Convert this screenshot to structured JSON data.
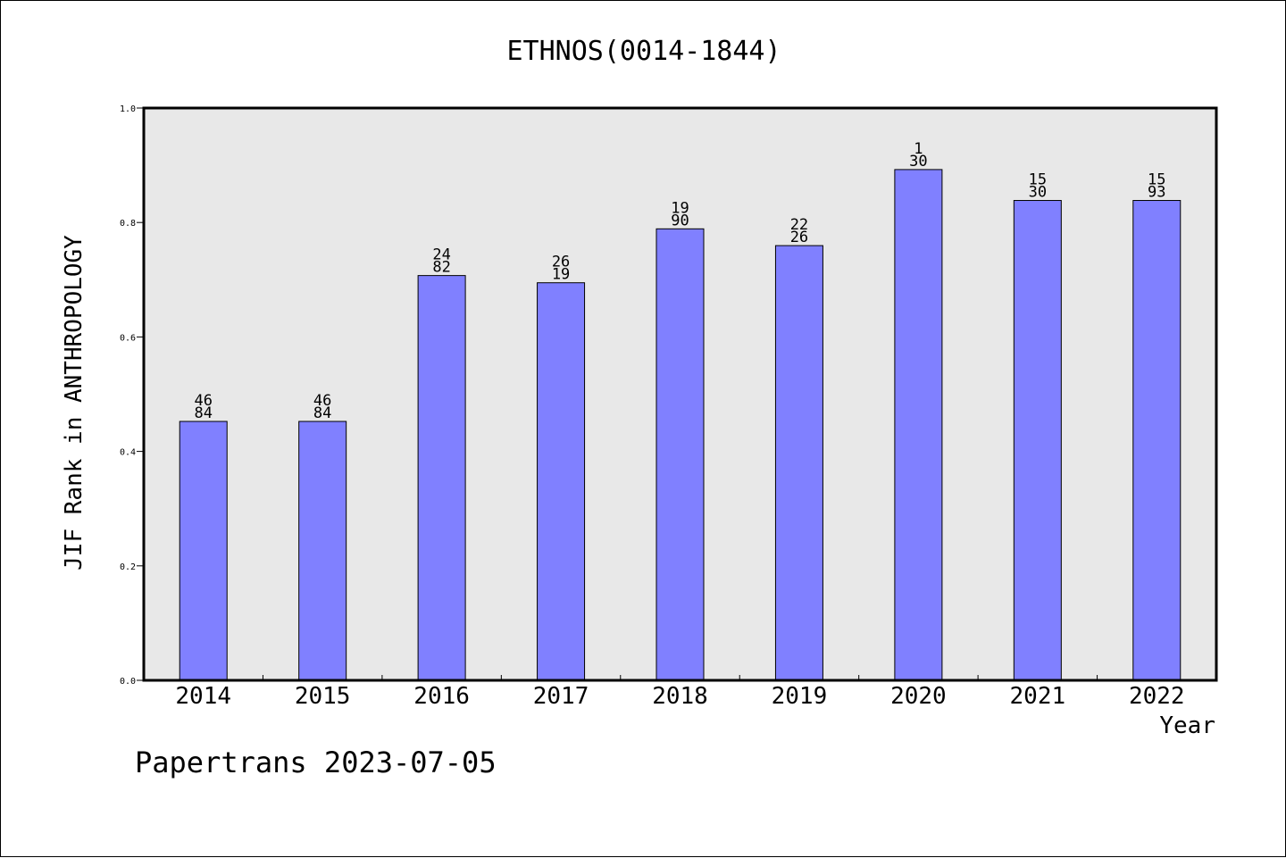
{
  "footer": "Papertrans 2023-07-05",
  "chart_data": {
    "type": "bar",
    "title": "ETHNOS(0014-1844)",
    "xlabel": "Year",
    "ylabel": "JIF Rank in ANTHROPOLOGY",
    "ylim": [
      0,
      1
    ],
    "yticks": [
      "0.0",
      "0.2",
      "0.4",
      "0.6",
      "0.8",
      "1.0"
    ],
    "ytick_values": [
      0,
      0.2,
      0.4,
      0.6,
      0.8,
      1.0
    ],
    "categories": [
      "2014",
      "2015",
      "2016",
      "2017",
      "2018",
      "2019",
      "2020",
      "2021",
      "2022"
    ],
    "values": [
      0.4524,
      0.4524,
      0.7073,
      0.6947,
      0.7889,
      0.7596,
      0.8925,
      0.8385,
      0.8385
    ],
    "labels_top": [
      "46",
      "46",
      "24",
      "26",
      "19",
      "22",
      "1",
      "15",
      "15"
    ],
    "labels_bottom": [
      "84",
      "84",
      "82",
      "19",
      "90",
      "26",
      "30",
      "30",
      "93"
    ],
    "grid": false,
    "colors": {
      "bar_fill": "#8080ff",
      "bar_stroke": "#000000",
      "plot_background": "#e8e8e8",
      "axis": "#000000"
    }
  }
}
